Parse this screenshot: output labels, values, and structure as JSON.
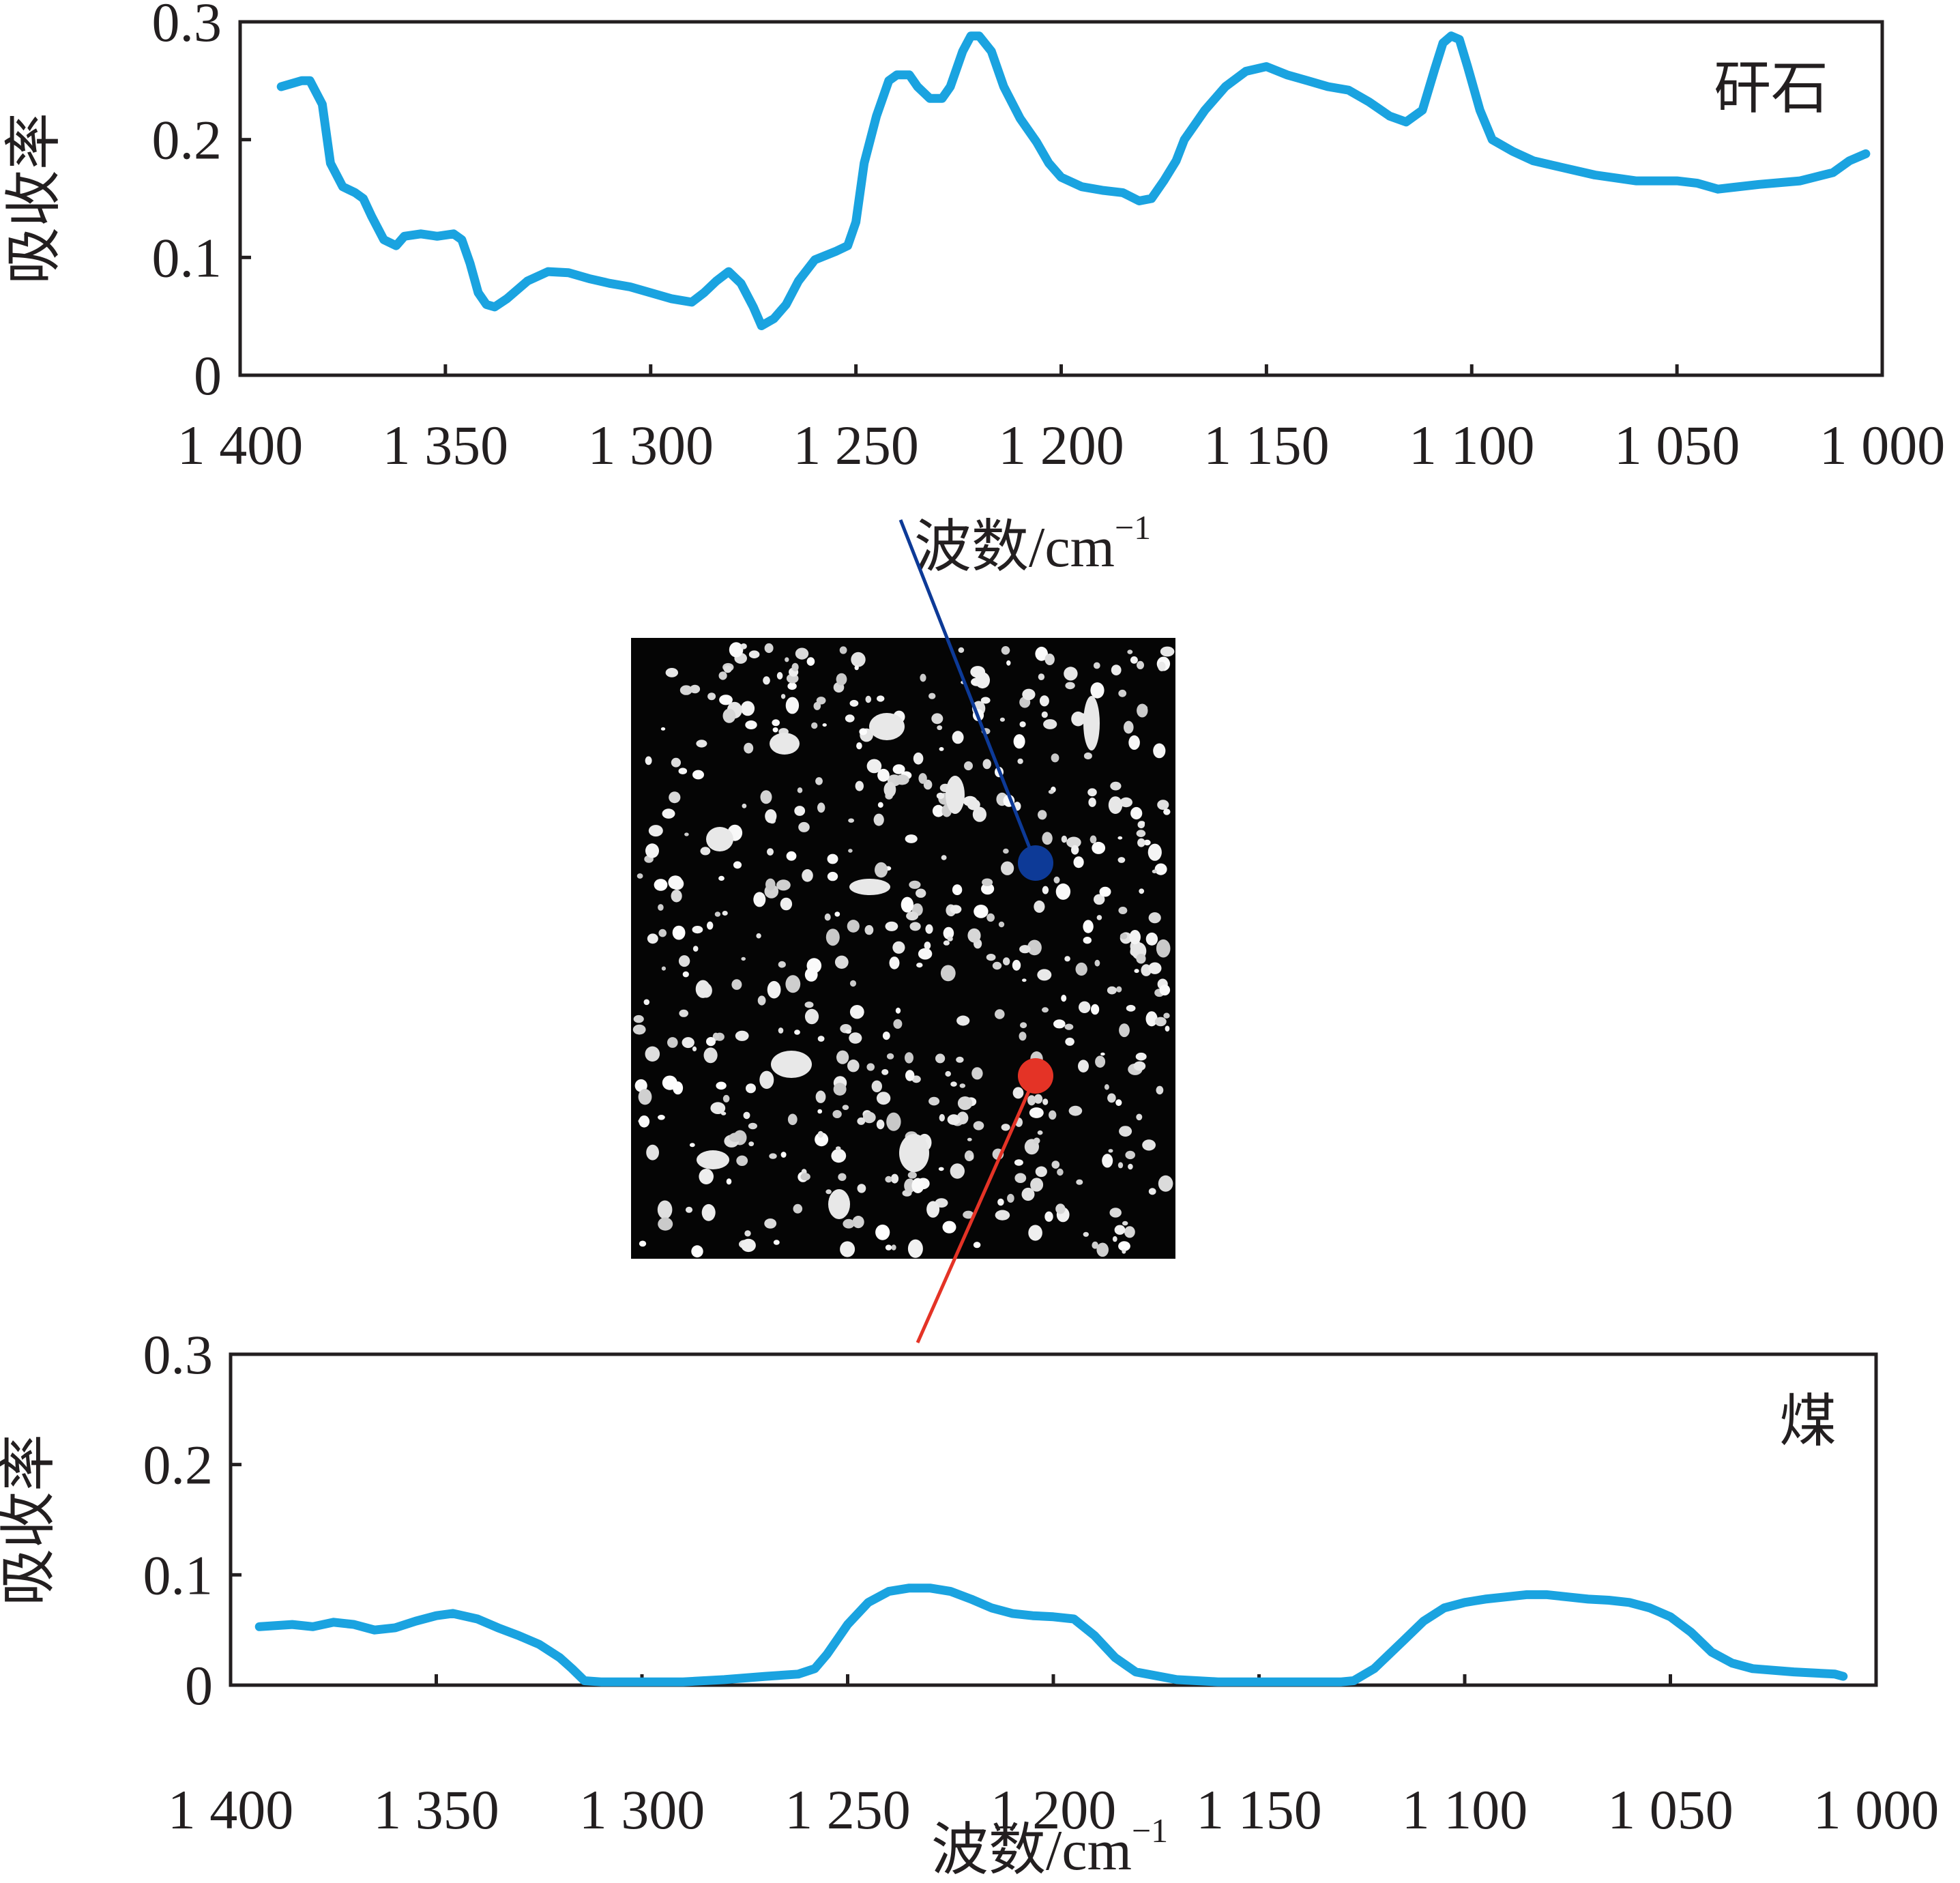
{
  "colors": {
    "spectrum_line": "#1aa3e0",
    "axis": "#231f20",
    "gangue_marker": "#0d3a97",
    "coal_marker": "#e43326",
    "micrograph_background": "#050505"
  },
  "micrograph": {
    "description_icon": "sample-micrograph",
    "gangue_marker_color": "#0d3a97",
    "coal_marker_color": "#e43326"
  },
  "chart_data": [
    {
      "type": "line",
      "panel_label": "矸石",
      "xlabel": "波数/cm",
      "xlabel_sup": "−1",
      "ylabel": "吸收率",
      "xlim": [
        1400,
        1000
      ],
      "x_reversed": true,
      "ylim": [
        0,
        0.3
      ],
      "xticks": [
        1400,
        1350,
        1300,
        1250,
        1200,
        1150,
        1100,
        1050,
        1000
      ],
      "xtick_labels": [
        "1 400",
        "1 350",
        "1 300",
        "1 250",
        "1 200",
        "1 150",
        "1 100",
        "1 050",
        "1 000"
      ],
      "yticks": [
        0,
        0.1,
        0.2,
        0.3
      ],
      "ytick_labels": [
        "0",
        "0.1",
        "0.2",
        "0.3"
      ],
      "grid": false,
      "series": [
        {
          "color": "#1aa3e0",
          "x": [
            1390,
            1385,
            1383,
            1380,
            1378,
            1375,
            1372,
            1370,
            1368,
            1365,
            1362,
            1360,
            1356,
            1352,
            1348,
            1346,
            1344,
            1342,
            1340,
            1338,
            1335,
            1330,
            1325,
            1320,
            1315,
            1310,
            1305,
            1300,
            1295,
            1290,
            1287,
            1284,
            1281,
            1278,
            1275,
            1273,
            1270,
            1267,
            1264,
            1260,
            1255,
            1252,
            1250,
            1248,
            1245,
            1242,
            1240,
            1237,
            1235,
            1232,
            1229,
            1227,
            1224,
            1222,
            1220,
            1217,
            1214,
            1210,
            1206,
            1203,
            1200,
            1195,
            1190,
            1185,
            1181,
            1178,
            1175,
            1172,
            1170,
            1167,
            1165,
            1160,
            1155,
            1150,
            1145,
            1140,
            1135,
            1130,
            1125,
            1120,
            1116,
            1112,
            1109,
            1107,
            1105,
            1103,
            1101,
            1098,
            1095,
            1090,
            1085,
            1080,
            1070,
            1060,
            1050,
            1045,
            1040,
            1030,
            1020,
            1012,
            1008,
            1004
          ],
          "y": [
            0.245,
            0.25,
            0.25,
            0.23,
            0.18,
            0.16,
            0.155,
            0.15,
            0.135,
            0.115,
            0.11,
            0.118,
            0.12,
            0.118,
            0.12,
            0.115,
            0.095,
            0.07,
            0.06,
            0.058,
            0.065,
            0.08,
            0.088,
            0.087,
            0.082,
            0.078,
            0.075,
            0.07,
            0.065,
            0.062,
            0.07,
            0.08,
            0.088,
            0.078,
            0.058,
            0.042,
            0.048,
            0.06,
            0.08,
            0.098,
            0.105,
            0.11,
            0.13,
            0.18,
            0.22,
            0.25,
            0.255,
            0.255,
            0.245,
            0.235,
            0.235,
            0.245,
            0.275,
            0.288,
            0.288,
            0.275,
            0.245,
            0.218,
            0.198,
            0.18,
            0.168,
            0.16,
            0.157,
            0.155,
            0.148,
            0.15,
            0.165,
            0.182,
            0.2,
            0.215,
            0.225,
            0.245,
            0.258,
            0.262,
            0.255,
            0.25,
            0.245,
            0.242,
            0.232,
            0.22,
            0.215,
            0.225,
            0.26,
            0.282,
            0.288,
            0.285,
            0.262,
            0.225,
            0.2,
            0.19,
            0.182,
            0.178,
            0.17,
            0.165,
            0.165,
            0.163,
            0.158,
            0.162,
            0.165,
            0.172,
            0.182,
            0.188
          ]
        }
      ]
    },
    {
      "type": "line",
      "panel_label": "煤",
      "xlabel": "波数/cm",
      "xlabel_sup": "−1",
      "ylabel": "吸收率",
      "xlim": [
        1400,
        1000
      ],
      "x_reversed": true,
      "ylim": [
        0,
        0.3
      ],
      "xticks": [
        1400,
        1350,
        1300,
        1250,
        1200,
        1150,
        1100,
        1050,
        1000
      ],
      "xtick_labels": [
        "1 400",
        "1 350",
        "1 300",
        "1 250",
        "1 200",
        "1 150",
        "1 100",
        "1 050",
        "1 000"
      ],
      "yticks": [
        0,
        0.1,
        0.2,
        0.3
      ],
      "ytick_labels": [
        "0",
        "0.1",
        "0.2",
        "0.3"
      ],
      "grid": false,
      "series": [
        {
          "color": "#1aa3e0",
          "x": [
            1393,
            1385,
            1380,
            1375,
            1370,
            1365,
            1360,
            1355,
            1350,
            1346,
            1340,
            1335,
            1330,
            1325,
            1320,
            1317,
            1314,
            1310,
            1300,
            1290,
            1280,
            1270,
            1262,
            1258,
            1255,
            1250,
            1245,
            1240,
            1235,
            1230,
            1225,
            1220,
            1215,
            1210,
            1205,
            1200,
            1195,
            1190,
            1185,
            1180,
            1170,
            1160,
            1150,
            1140,
            1130,
            1127,
            1122,
            1115,
            1110,
            1105,
            1100,
            1095,
            1090,
            1085,
            1080,
            1075,
            1070,
            1065,
            1060,
            1055,
            1050,
            1045,
            1040,
            1035,
            1030,
            1020,
            1010,
            1008
          ],
          "y": [
            0.053,
            0.055,
            0.053,
            0.057,
            0.055,
            0.05,
            0.052,
            0.058,
            0.063,
            0.065,
            0.06,
            0.052,
            0.045,
            0.037,
            0.025,
            0.015,
            0.004,
            0.003,
            0.003,
            0.003,
            0.005,
            0.008,
            0.01,
            0.015,
            0.028,
            0.055,
            0.075,
            0.085,
            0.088,
            0.088,
            0.085,
            0.078,
            0.07,
            0.065,
            0.063,
            0.062,
            0.06,
            0.045,
            0.025,
            0.012,
            0.005,
            0.003,
            0.003,
            0.003,
            0.003,
            0.004,
            0.015,
            0.04,
            0.058,
            0.07,
            0.075,
            0.078,
            0.08,
            0.082,
            0.082,
            0.08,
            0.078,
            0.077,
            0.075,
            0.07,
            0.062,
            0.048,
            0.03,
            0.02,
            0.015,
            0.012,
            0.01,
            0.008
          ]
        }
      ]
    }
  ]
}
